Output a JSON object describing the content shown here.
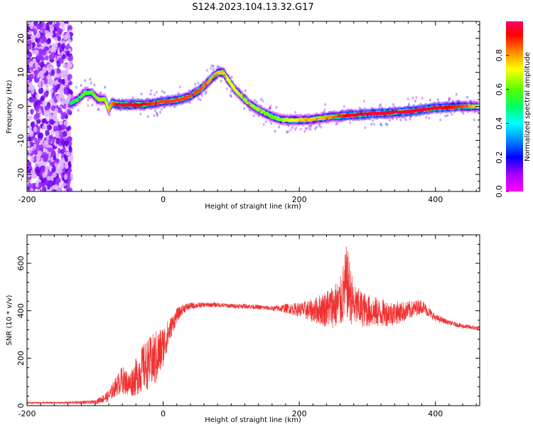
{
  "chart_data": [
    {
      "type": "heatmap",
      "title": "S124.2023.104.13.32.G17",
      "xlabel": "Height of straight line (km)",
      "ylabel": "Frequency (Hz)",
      "xlim": [
        -200,
        465
      ],
      "ylim": [
        -25,
        25
      ],
      "xticks": [
        -200,
        0,
        200,
        400
      ],
      "yticks": [
        -20,
        -10,
        0,
        10,
        20
      ],
      "colorbar": {
        "label": "Normalized spectral amplitude",
        "range": [
          0.0,
          1.0
        ],
        "ticks": [
          0.0,
          0.2,
          0.4,
          0.6,
          0.8
        ],
        "colormap": [
          "#ff00ff",
          "#aa00ff",
          "#0000ff",
          "#0088ff",
          "#00ffff",
          "#00ff66",
          "#55ff00",
          "#ffff00",
          "#ff8800",
          "#ff0000",
          "#ff0066"
        ]
      },
      "noise_region_x": [
        -200,
        -135
      ],
      "ridge": {
        "name": "",
        "x": [
          -135,
          -125,
          -115,
          -105,
          -95,
          -85,
          -80,
          -75,
          -65,
          -50,
          -30,
          -10,
          0,
          10,
          25,
          40,
          55,
          65,
          75,
          82,
          88,
          95,
          105,
          115,
          125,
          140,
          160,
          175,
          190,
          210,
          230,
          250,
          280,
          320,
          360,
          400,
          440,
          465
        ],
        "y": [
          1,
          2,
          4,
          4,
          2,
          2,
          -1,
          1,
          0.5,
          0.5,
          0.5,
          1,
          1.5,
          1.5,
          2,
          3,
          5,
          7,
          9,
          10,
          10,
          8,
          5,
          3,
          1,
          -1,
          -3,
          -4,
          -4,
          -4,
          -3.5,
          -3,
          -2.5,
          -2,
          -1.5,
          -0.5,
          0,
          0
        ],
        "amplitude": [
          0.5,
          0.55,
          0.6,
          0.6,
          0.65,
          0.65,
          0.75,
          0.8,
          0.95,
          0.95,
          0.9,
          0.85,
          0.85,
          0.85,
          0.85,
          0.85,
          0.85,
          0.8,
          0.75,
          0.75,
          0.75,
          0.7,
          0.7,
          0.65,
          0.65,
          0.65,
          0.6,
          0.65,
          0.7,
          0.75,
          0.75,
          0.8,
          0.95,
          0.95,
          0.95,
          0.95,
          0.85,
          0.7
        ]
      }
    },
    {
      "type": "line",
      "title": "",
      "xlabel": "Height of straight line (km)",
      "ylabel": "SNR (10 * v/v)",
      "xlim": [
        -200,
        465
      ],
      "ylim": [
        0,
        720
      ],
      "xticks": [
        -200,
        0,
        200,
        400
      ],
      "yticks": [
        0,
        200,
        400,
        600
      ],
      "series": [
        {
          "name": "",
          "color": "#f03030",
          "x": [
            -200,
            -150,
            -100,
            -80,
            -70,
            -60,
            -50,
            -40,
            -30,
            -20,
            -10,
            0,
            10,
            20,
            30,
            40,
            60,
            80,
            100,
            120,
            140,
            160,
            180,
            200,
            220,
            240,
            260,
            270,
            280,
            300,
            320,
            340,
            360,
            380,
            400,
            420,
            440,
            465
          ],
          "y": [
            12,
            12,
            15,
            40,
            80,
            110,
            90,
            120,
            160,
            180,
            200,
            250,
            320,
            380,
            410,
            420,
            425,
            425,
            420,
            420,
            415,
            410,
            410,
            405,
            400,
            410,
            430,
            520,
            420,
            400,
            390,
            390,
            400,
            420,
            370,
            350,
            335,
            325
          ],
          "spread": [
            4,
            4,
            8,
            25,
            40,
            60,
            50,
            80,
            100,
            110,
            120,
            90,
            50,
            30,
            20,
            15,
            10,
            10,
            10,
            10,
            10,
            10,
            20,
            30,
            50,
            80,
            110,
            160,
            90,
            70,
            60,
            50,
            40,
            30,
            15,
            10,
            10,
            10
          ]
        }
      ]
    }
  ]
}
